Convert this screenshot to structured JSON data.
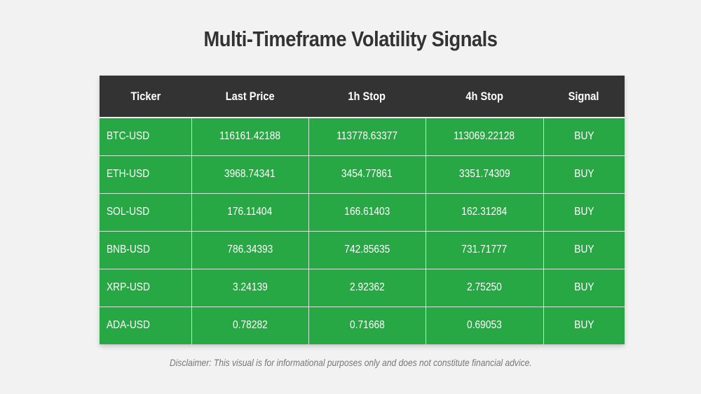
{
  "title": "Multi-Timeframe Volatility Signals",
  "table": {
    "headers": [
      "Ticker",
      "Last Price",
      "1h Stop",
      "4h Stop",
      "Signal"
    ],
    "rows": [
      [
        "BTC-USD",
        "116161.42188",
        "113778.63377",
        "113069.22128",
        "BUY"
      ],
      [
        "ETH-USD",
        "3968.74341",
        "3454.77861",
        "3351.74309",
        "BUY"
      ],
      [
        "SOL-USD",
        "176.11404",
        "166.61403",
        "162.31284",
        "BUY"
      ],
      [
        "BNB-USD",
        "786.34393",
        "742.85635",
        "731.71777",
        "BUY"
      ],
      [
        "XRP-USD",
        "3.24139",
        "2.92362",
        "2.75250",
        "BUY"
      ],
      [
        "ADA-USD",
        "0.78282",
        "0.71668",
        "0.69053",
        "BUY"
      ]
    ]
  },
  "disclaimer": "Disclaimer: This visual is for informational purposes only and does not constitute financial advice.",
  "colors": {
    "header_bg": "#333333",
    "buy_bg": "#27a844",
    "page_bg": "#f2f2f2"
  }
}
